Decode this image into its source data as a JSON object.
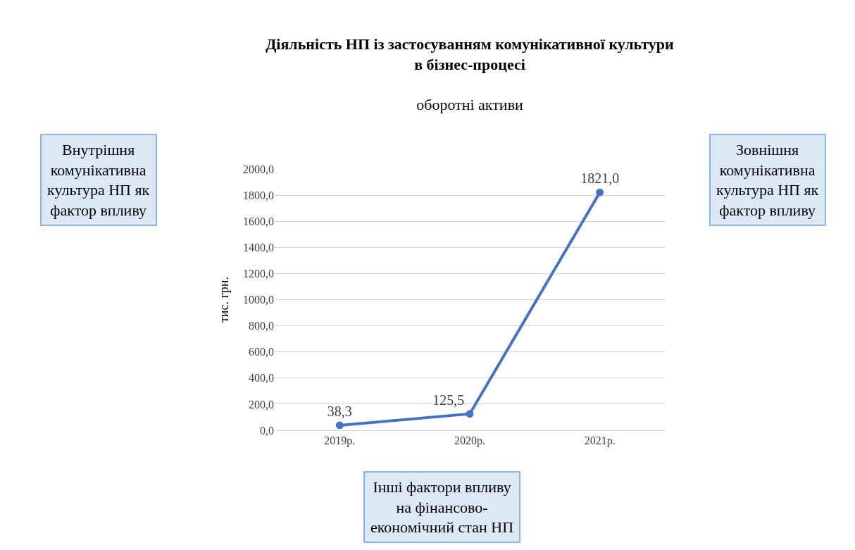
{
  "chart_data": {
    "type": "line",
    "title": "Діяльність НП із застосуванням комунікативної культури\nв бізнес-процесі",
    "subtitle": "оборотні активи",
    "ylabel": "тис. грн.",
    "categories": [
      "2019р.",
      "2020р.",
      "2021р."
    ],
    "series": [
      {
        "color": "#4472c4",
        "values": [
          38.3,
          125.5,
          1821.0
        ],
        "value_labels": [
          "38,3",
          "125,5",
          "1821,0"
        ]
      }
    ],
    "ylim": [
      0,
      2000
    ],
    "yticks": [
      {
        "value": 0,
        "label": "0,0"
      },
      {
        "value": 200,
        "label": "200,0"
      },
      {
        "value": 400,
        "label": "400,0"
      },
      {
        "value": 600,
        "label": "600,0"
      },
      {
        "value": 800,
        "label": "800,0"
      },
      {
        "value": 1000,
        "label": "1000,0"
      },
      {
        "value": 1200,
        "label": "1200,0"
      },
      {
        "value": 1400,
        "label": "1400,0"
      },
      {
        "value": 1600,
        "label": "1600,0"
      },
      {
        "value": 1800,
        "label": "1800,0"
      },
      {
        "value": 2000,
        "label": "2000,0"
      }
    ],
    "grid": "y",
    "marker": "circle",
    "line_style": "solid",
    "legend": false,
    "annotations": [
      "Внутрішня\nкомунікативна\nкультура НП як\nфактор впливу",
      "Зовнішня\nкомунікативна\nкультура НП як\nфактор впливу",
      "Інші фактори впливу\nна фінансово-\nекономічний стан НП"
    ]
  }
}
